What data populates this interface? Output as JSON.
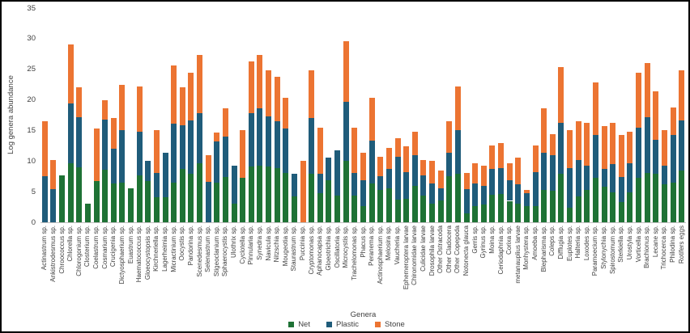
{
  "chart_data": {
    "type": "bar",
    "stacked": true,
    "xlabel": "Genera",
    "ylabel": "Log genera abundance",
    "ylim": [
      0,
      35
    ],
    "yticks": [
      0,
      5,
      10,
      15,
      20,
      25,
      30,
      35
    ],
    "grid": false,
    "legend_position": "bottom-center",
    "colors": {
      "Net": "#1E7235",
      "Plastic": "#1F5C7A",
      "Stone": "#EC7432"
    },
    "categories": [
      "Actinastrum sp.",
      "Ankistrodesmus sp.",
      "Chroococcus sp.",
      "Chlorella sp.",
      "Chlorogonium sp.",
      "Closterium sp.",
      "Coelastrum sp.",
      "Cosmarium sp.",
      "Crucigenia sp.",
      "Dictyosphaerium sp.",
      "Euastrum sp.",
      "Haematococcus sp.",
      "Gloeocystopsis sp.",
      "Kirchneriella sp.",
      "Lagerheimia sp.",
      "Micractinium sp.",
      "Oocystis sp.",
      "Pandorina sp.",
      "Scenedesmus sp.",
      "Selenastrum sp.",
      "Stigeoclanium sp.",
      "Sphaerocystis sp.",
      "Ulothrix sp.",
      "Cyclotella sp.",
      "Pinnularia sp.",
      "Synedra sp.",
      "Navicula sp.",
      "Nitzschia sp.",
      "Mougeotia sp.",
      "Staurastrum sp.",
      "Puccinia sp.",
      "Cryptomonas sp.",
      "Aphanocapsa sp.",
      "Gloeotrichia sp.",
      "Oscillatoria sp.",
      "Microcystis sp.",
      "Trachelomonas sp.",
      "Phacus sp.",
      "Peranema sp.",
      "Actinosphaerium sp.",
      "Melosira sp.",
      "Vaucheria sp.",
      "Ephemeroptera larvae",
      "Chironomidae larvae",
      "Culicidae larvae",
      "Drosophila larvae",
      "Other Ostracoda",
      "Other Cladocera",
      "Other Copepoda",
      "Notonecta glauca",
      "Gerris sp.",
      "Gyrinus sp.",
      "Moina sp.",
      "Ceriodaphnia sp.",
      "Corixa sp.",
      "metanauplius larvae",
      "Monhystera sp.",
      "Amoeba sp.",
      "Blepharisma sp.",
      "Coleps sp.",
      "Difflugia sp.",
      "Euplotes sp.",
      "Halteria sp.",
      "Loxodes sp.",
      "Paramoecium sp.",
      "Stylonychia sp.",
      "Spirostomum sp.",
      "Sterkiella sp.",
      "Urostyla sp.",
      "Vorticella sp.",
      "Brachionus sp.",
      "Lecane sp.",
      "Trichocerca sp.",
      "Philodina sp.",
      "Rotifers eggs"
    ],
    "series": [
      {
        "name": "Net",
        "values": [
          0,
          0,
          7.7,
          9.6,
          9.0,
          3.1,
          6.7,
          8.6,
          6.4,
          6.5,
          5.5,
          7.7,
          6.7,
          4.1,
          4.1,
          6.5,
          8.7,
          7.9,
          9.6,
          0,
          6.5,
          7.4,
          3.0,
          7.2,
          9.1,
          9.3,
          9.1,
          8.9,
          8.1,
          4.2,
          0,
          7.9,
          4.7,
          6.9,
          4.3,
          10.0,
          4.3,
          2.7,
          6.3,
          5.3,
          5.5,
          3.7,
          3.8,
          6.0,
          4.3,
          3.0,
          3.6,
          7.5,
          7.9,
          1.5,
          2.6,
          2.9,
          4.5,
          4.6,
          3.5,
          3.0,
          2.6,
          2.6,
          5.3,
          5.1,
          7.9,
          2.4,
          4.2,
          5.3,
          7.3,
          5.8,
          4.9,
          3.3,
          4.9,
          7.3,
          8.1,
          7.9,
          6.2,
          6.5,
          8.4
        ]
      },
      {
        "name": "Plastic",
        "values": [
          7.5,
          5.4,
          0,
          9.8,
          8.2,
          0,
          0,
          8.2,
          5.6,
          8.5,
          0,
          7.1,
          3.4,
          4.0,
          7.2,
          9.6,
          7.2,
          8.8,
          8.2,
          6.6,
          6.7,
          6.6,
          6.3,
          0,
          8.7,
          9.3,
          8.2,
          7.6,
          7.2,
          3.7,
          0,
          9.1,
          3.2,
          3.7,
          7.5,
          9.7,
          3.7,
          4.2,
          7.0,
          2.2,
          3.2,
          7.0,
          4.4,
          5.0,
          3.4,
          3.3,
          1.9,
          3.8,
          7.1,
          3.9,
          3.8,
          3.1,
          4.2,
          4.3,
          3.4,
          3.2,
          2.1,
          5.6,
          6.0,
          5.8,
          8.4,
          6.5,
          6.0,
          4.0,
          7.0,
          2.9,
          4.6,
          4.1,
          4.7,
          8.2,
          9.1,
          5.6,
          3.1,
          7.7,
          8.3
        ]
      },
      {
        "name": "Stone",
        "values": [
          9.0,
          4.8,
          0,
          9.6,
          4.8,
          0,
          8.6,
          3.1,
          5.0,
          7.4,
          0,
          7.4,
          0,
          6.9,
          0,
          9.5,
          6.1,
          7.7,
          9.6,
          4.4,
          1.5,
          4.6,
          0,
          7.9,
          8.5,
          8.7,
          7.5,
          7.3,
          5.1,
          0,
          10.1,
          7.8,
          7.6,
          0,
          0,
          9.9,
          7.5,
          4.4,
          7.0,
          3.2,
          3.4,
          3.0,
          4.2,
          3.8,
          2.5,
          3.7,
          2.9,
          5.2,
          7.2,
          2.6,
          3.3,
          3.3,
          3.9,
          4.0,
          2.7,
          4.4,
          0.6,
          4.4,
          7.3,
          3.5,
          9.0,
          6.2,
          6.3,
          7.0,
          8.5,
          7.0,
          6.7,
          6.8,
          5.2,
          8.9,
          8.8,
          7.9,
          5.7,
          4.6,
          8.1
        ]
      }
    ]
  }
}
